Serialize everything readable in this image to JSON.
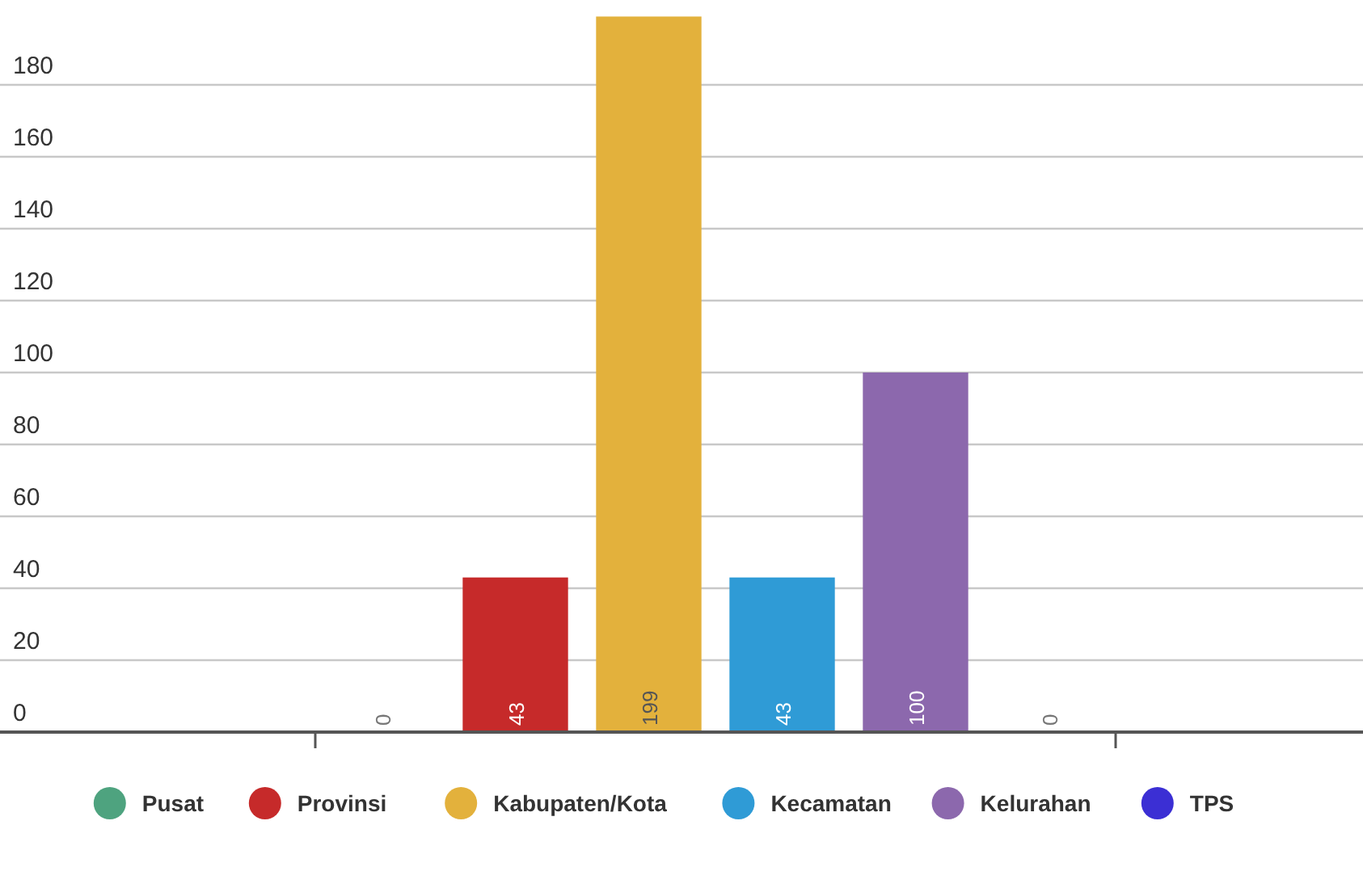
{
  "chart_data": {
    "type": "bar",
    "categories": [
      null
    ],
    "series": [
      {
        "name": "Pusat",
        "color": "#4ea37f",
        "values": [
          0
        ]
      },
      {
        "name": "Provinsi",
        "color": "#c62a2a",
        "values": [
          43
        ]
      },
      {
        "name": "Kabupaten/Kota",
        "color": "#e3b13c",
        "values": [
          199
        ]
      },
      {
        "name": "Kecamatan",
        "color": "#2f9bd6",
        "values": [
          43
        ]
      },
      {
        "name": "Kelurahan",
        "color": "#8c68ad",
        "values": [
          100
        ]
      },
      {
        "name": "TPS",
        "color": "#3b2fd4",
        "values": [
          0
        ]
      }
    ],
    "ylim": [
      0,
      200
    ],
    "yticks": [
      0,
      20,
      40,
      60,
      80,
      100,
      120,
      140,
      160,
      180
    ],
    "grid": "y",
    "data_labels": true,
    "legend": "bottom"
  }
}
